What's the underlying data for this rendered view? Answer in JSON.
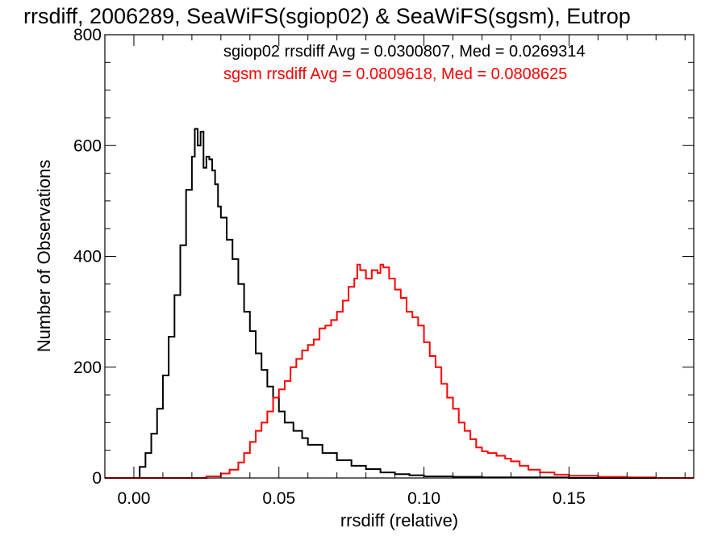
{
  "chart_data": {
    "type": "histogram-step",
    "title": "rrsdiff, 2006289, SeaWiFS(sgiop02) & SeaWiFS(sgsm), Eutrop",
    "xlabel": "rrsdiff (relative)",
    "ylabel": "Number of Observations",
    "xlim": [
      -0.01,
      0.193
    ],
    "ylim": [
      0,
      800
    ],
    "x_ticks": [
      0.0,
      0.05,
      0.1,
      0.15
    ],
    "x_tick_labels": [
      "0.00",
      "0.05",
      "0.10",
      "0.15"
    ],
    "y_ticks": [
      0,
      200,
      400,
      600,
      800
    ],
    "y_tick_labels": [
      "0",
      "200",
      "400",
      "600",
      "800"
    ],
    "annotations": [
      {
        "text": "sgiop02 rrsdiff Avg = 0.0300807, Med = 0.0269314",
        "color": "#000000"
      },
      {
        "text": "sgsm rrsdiff Avg = 0.0809618, Med = 0.0808625",
        "color": "#ff0000"
      }
    ],
    "series": [
      {
        "color": "#000000",
        "points": [
          [
            -0.01,
            0
          ],
          [
            0.0,
            0
          ],
          [
            0.002,
            20
          ],
          [
            0.004,
            45
          ],
          [
            0.006,
            80
          ],
          [
            0.008,
            125
          ],
          [
            0.01,
            185
          ],
          [
            0.012,
            255
          ],
          [
            0.014,
            330
          ],
          [
            0.016,
            420
          ],
          [
            0.018,
            520
          ],
          [
            0.02,
            580
          ],
          [
            0.021,
            630
          ],
          [
            0.022,
            600
          ],
          [
            0.023,
            625
          ],
          [
            0.024,
            560
          ],
          [
            0.025,
            580
          ],
          [
            0.026,
            575
          ],
          [
            0.027,
            555
          ],
          [
            0.028,
            530
          ],
          [
            0.029,
            490
          ],
          [
            0.03,
            470
          ],
          [
            0.032,
            430
          ],
          [
            0.034,
            395
          ],
          [
            0.036,
            350
          ],
          [
            0.038,
            300
          ],
          [
            0.04,
            265
          ],
          [
            0.042,
            225
          ],
          [
            0.044,
            195
          ],
          [
            0.046,
            165
          ],
          [
            0.048,
            145
          ],
          [
            0.05,
            120
          ],
          [
            0.052,
            100
          ],
          [
            0.055,
            85
          ],
          [
            0.058,
            72
          ],
          [
            0.06,
            60
          ],
          [
            0.065,
            45
          ],
          [
            0.07,
            32
          ],
          [
            0.075,
            22
          ],
          [
            0.08,
            16
          ],
          [
            0.085,
            10
          ],
          [
            0.09,
            7
          ],
          [
            0.095,
            5
          ],
          [
            0.1,
            3
          ],
          [
            0.11,
            2
          ],
          [
            0.12,
            1
          ],
          [
            0.13,
            1
          ],
          [
            0.15,
            0
          ],
          [
            0.193,
            0
          ]
        ]
      },
      {
        "color": "#ff0000",
        "points": [
          [
            -0.01,
            0
          ],
          [
            0.02,
            0
          ],
          [
            0.025,
            3
          ],
          [
            0.03,
            8
          ],
          [
            0.033,
            15
          ],
          [
            0.036,
            28
          ],
          [
            0.038,
            45
          ],
          [
            0.04,
            65
          ],
          [
            0.042,
            85
          ],
          [
            0.044,
            100
          ],
          [
            0.046,
            120
          ],
          [
            0.048,
            145
          ],
          [
            0.05,
            160
          ],
          [
            0.052,
            175
          ],
          [
            0.054,
            200
          ],
          [
            0.056,
            215
          ],
          [
            0.058,
            230
          ],
          [
            0.06,
            240
          ],
          [
            0.062,
            250
          ],
          [
            0.064,
            270
          ],
          [
            0.066,
            275
          ],
          [
            0.068,
            285
          ],
          [
            0.07,
            300
          ],
          [
            0.072,
            320
          ],
          [
            0.074,
            345
          ],
          [
            0.076,
            360
          ],
          [
            0.077,
            385
          ],
          [
            0.078,
            375
          ],
          [
            0.08,
            360
          ],
          [
            0.082,
            375
          ],
          [
            0.084,
            370
          ],
          [
            0.085,
            385
          ],
          [
            0.086,
            380
          ],
          [
            0.088,
            360
          ],
          [
            0.09,
            340
          ],
          [
            0.092,
            325
          ],
          [
            0.094,
            300
          ],
          [
            0.096,
            290
          ],
          [
            0.098,
            275
          ],
          [
            0.1,
            245
          ],
          [
            0.102,
            220
          ],
          [
            0.104,
            200
          ],
          [
            0.106,
            170
          ],
          [
            0.108,
            145
          ],
          [
            0.11,
            125
          ],
          [
            0.112,
            100
          ],
          [
            0.114,
            85
          ],
          [
            0.116,
            70
          ],
          [
            0.118,
            55
          ],
          [
            0.12,
            48
          ],
          [
            0.122,
            45
          ],
          [
            0.125,
            40
          ],
          [
            0.128,
            35
          ],
          [
            0.13,
            30
          ],
          [
            0.133,
            22
          ],
          [
            0.136,
            15
          ],
          [
            0.14,
            10
          ],
          [
            0.145,
            6
          ],
          [
            0.15,
            4
          ],
          [
            0.16,
            2
          ],
          [
            0.17,
            1
          ],
          [
            0.18,
            0
          ],
          [
            0.193,
            0
          ]
        ]
      }
    ]
  }
}
